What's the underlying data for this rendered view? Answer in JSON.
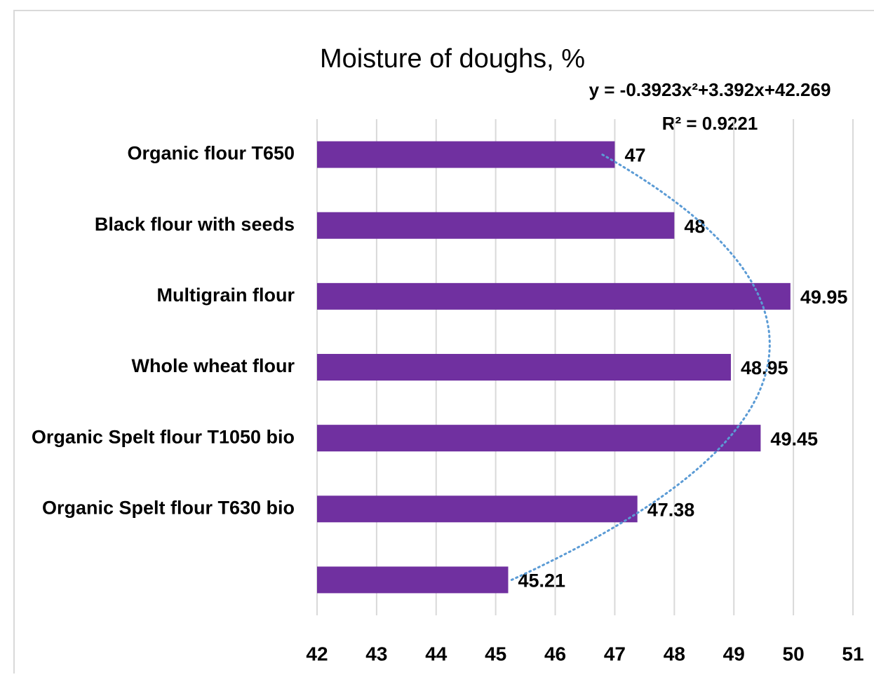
{
  "chart_data": {
    "type": "bar",
    "orientation": "horizontal",
    "title": "Moisture of doughs, %",
    "categories": [
      "Organic flour T650",
      "Black flour with seeds",
      "Multigrain flour",
      "Whole wheat flour ",
      "Organic Spelt flour T1050 bio",
      "Organic Spelt flour T630 bio",
      null
    ],
    "values": [
      47,
      48,
      49.95,
      48.95,
      49.45,
      47.38,
      45.21
    ],
    "color": "#7030a0",
    "xlim": [
      42,
      51
    ],
    "xticks": [
      42,
      43,
      44,
      45,
      46,
      47,
      48,
      49,
      50,
      51
    ],
    "grid": true,
    "trendline": {
      "type": "polynomial",
      "order": 2,
      "color": "#5b9bd5",
      "equation": "y = -0.3923x²+3.392x+42.269",
      "r_squared": "R² = 0.9221"
    }
  }
}
